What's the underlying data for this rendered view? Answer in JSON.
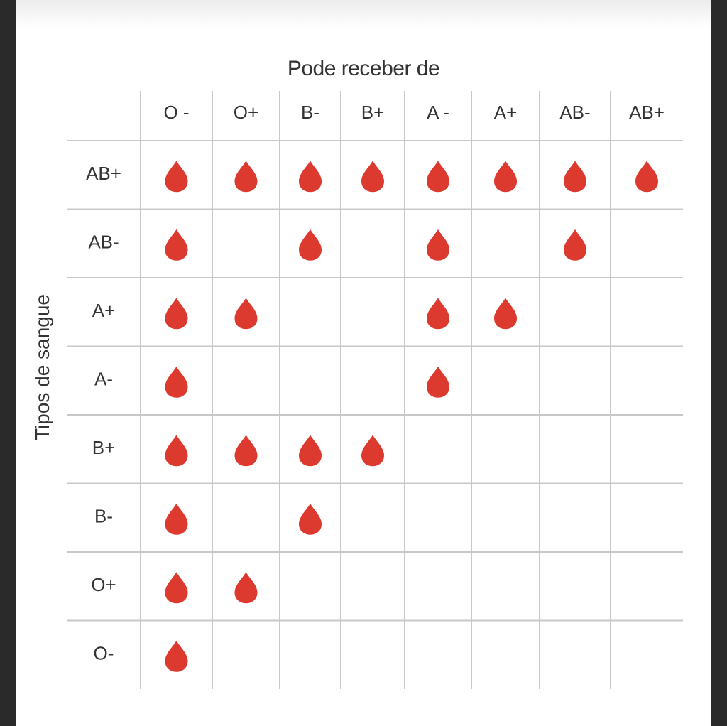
{
  "chart_data": {
    "type": "table",
    "column_heading": "Pode receber de",
    "row_heading": "Tipos de sangue",
    "columns": [
      "O -",
      "O+",
      "B-",
      "B+",
      "A -",
      "A+",
      "AB-",
      "AB+"
    ],
    "rows": [
      {
        "label": "AB+",
        "cells": [
          1,
          1,
          1,
          1,
          1,
          1,
          1,
          1
        ]
      },
      {
        "label": "AB-",
        "cells": [
          1,
          0,
          1,
          0,
          1,
          0,
          1,
          0
        ]
      },
      {
        "label": "A+",
        "cells": [
          1,
          1,
          0,
          0,
          1,
          1,
          0,
          0
        ]
      },
      {
        "label": "A-",
        "cells": [
          1,
          0,
          0,
          0,
          1,
          0,
          0,
          0
        ]
      },
      {
        "label": "B+",
        "cells": [
          1,
          1,
          1,
          1,
          0,
          0,
          0,
          0
        ]
      },
      {
        "label": "B-",
        "cells": [
          1,
          0,
          1,
          0,
          0,
          0,
          0,
          0
        ]
      },
      {
        "label": "O+",
        "cells": [
          1,
          1,
          0,
          0,
          0,
          0,
          0,
          0
        ]
      },
      {
        "label": "O-",
        "cells": [
          1,
          0,
          0,
          0,
          0,
          0,
          0,
          0
        ]
      }
    ],
    "mark": "blood-drop-icon",
    "mark_color": "#dd3a2f",
    "grid_color": "#c8c8c8"
  }
}
